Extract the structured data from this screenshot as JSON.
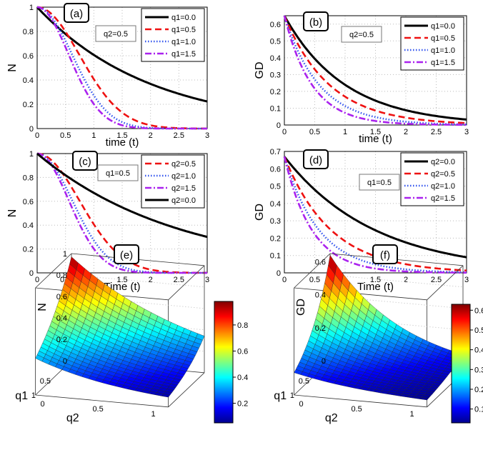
{
  "colors": {
    "black": "#000000",
    "red": "#ee1111",
    "blue": "#3355ee",
    "purple": "#aa22ee",
    "grid": "#bbbbbb"
  },
  "chart_data": [
    {
      "panel": "(a)",
      "type": "line",
      "ylabel": "N",
      "xlabel": "time (t)",
      "xlim": [
        0,
        3
      ],
      "ylim": [
        0,
        1
      ],
      "xticks": [
        "0",
        "0.5",
        "1",
        "1.5",
        "2",
        "2.5",
        "3"
      ],
      "yticks": [
        "0",
        "0.2",
        "0.4",
        "0.6",
        "0.8",
        "1"
      ],
      "annotation": "q2=0.5",
      "legend_position": "top-right",
      "series": [
        {
          "name": "q1=0.0",
          "style": "solid",
          "color": "black",
          "y0": 1.0,
          "rate": 0.5,
          "power": 1
        },
        {
          "name": "q1=0.5",
          "style": "dashed",
          "color": "red",
          "y0": 1.0,
          "rate": 0.9,
          "power": 2
        },
        {
          "name": "q1=1.0",
          "style": "dotted",
          "color": "blue",
          "y0": 1.0,
          "rate": 1.3,
          "power": 2
        },
        {
          "name": "q1=1.5",
          "style": "dashdot",
          "color": "purple",
          "y0": 1.0,
          "rate": 1.6,
          "power": 2
        }
      ]
    },
    {
      "panel": "(b)",
      "type": "line",
      "ylabel": "GD",
      "xlabel": "time (t)",
      "xlim": [
        0,
        3
      ],
      "ylim": [
        0,
        0.65
      ],
      "xticks": [
        "0",
        "0.5",
        "1",
        "1.5",
        "2",
        "2.5",
        "3"
      ],
      "yticks": [
        "0",
        "0.1",
        "0.2",
        "0.3",
        "0.4",
        "0.5",
        "0.6"
      ],
      "annotation": "q2=0.5",
      "legend_position": "top-right",
      "series": [
        {
          "name": "q1=0.0",
          "style": "solid",
          "color": "black",
          "y0": 0.65,
          "rate": 1.0,
          "power": 1
        },
        {
          "name": "q1=0.5",
          "style": "dashed",
          "color": "red",
          "y0": 0.65,
          "rate": 1.35,
          "power": 1
        },
        {
          "name": "q1=1.0",
          "style": "dotted",
          "color": "blue",
          "y0": 0.65,
          "rate": 1.75,
          "power": 1
        },
        {
          "name": "q1=1.5",
          "style": "dashdot",
          "color": "purple",
          "y0": 0.65,
          "rate": 2.2,
          "power": 1
        }
      ]
    },
    {
      "panel": "(c)",
      "type": "line",
      "ylabel": "N",
      "xlabel": "Time (t)",
      "xlim": [
        0,
        3
      ],
      "ylim": [
        0,
        1
      ],
      "xticks": [
        "0",
        "0.5",
        "1",
        "1.5",
        "2",
        "2.5",
        "3"
      ],
      "yticks": [
        "0",
        "0.2",
        "0.4",
        "0.6",
        "0.8",
        "1"
      ],
      "annotation": "q1=0.5",
      "legend_position": "top-right",
      "series": [
        {
          "name": "q2=0.5",
          "style": "dashed",
          "color": "red",
          "y0": 1.0,
          "rate": 0.9,
          "power": 2
        },
        {
          "name": "q2=1.0",
          "style": "dotted",
          "color": "blue",
          "y0": 1.0,
          "rate": 1.3,
          "power": 2
        },
        {
          "name": "q2=1.5",
          "style": "dashdot",
          "color": "purple",
          "y0": 1.0,
          "rate": 1.6,
          "power": 2
        },
        {
          "name": "q2=0.0",
          "style": "solid",
          "color": "black",
          "y0": 1.0,
          "rate": 0.4,
          "power": 1
        }
      ]
    },
    {
      "panel": "(d)",
      "type": "line",
      "ylabel": "GD",
      "xlabel": "Time (t)",
      "xlim": [
        0,
        3
      ],
      "ylim": [
        0,
        0.7
      ],
      "xticks": [
        "0",
        "0.5",
        "1",
        "1.5",
        "2",
        "2.5",
        "3"
      ],
      "yticks": [
        "0",
        "0.1",
        "0.2",
        "0.3",
        "0.4",
        "0.5",
        "0.6",
        "0.7"
      ],
      "annotation": "q1=0.5",
      "legend_position": "top-right",
      "series": [
        {
          "name": "q2=0.0",
          "style": "solid",
          "color": "black",
          "y0": 0.67,
          "rate": 0.67,
          "power": 1
        },
        {
          "name": "q2=0.5",
          "style": "dashed",
          "color": "red",
          "y0": 0.67,
          "rate": 1.3,
          "power": 1
        },
        {
          "name": "q2=1.0",
          "style": "dotted",
          "color": "blue",
          "y0": 0.67,
          "rate": 1.75,
          "power": 1
        },
        {
          "name": "q2=1.5",
          "style": "dashdot",
          "color": "purple",
          "y0": 0.67,
          "rate": 2.2,
          "power": 1
        }
      ]
    },
    {
      "panel": "(e)",
      "type": "surface",
      "zlabel": "N",
      "xlabel": "q2",
      "ylabel": "q1",
      "zticks": [
        "0",
        "0.2",
        "0.4",
        "0.6",
        "0.8",
        "1"
      ],
      "xticks": [
        "0",
        "0.5",
        "1"
      ],
      "yticks": [
        "0.5",
        "1"
      ],
      "colorbar_ticks": [
        "0.2",
        "0.4",
        "0.6",
        "0.8"
      ],
      "zrange": [
        0.05,
        0.98
      ]
    },
    {
      "panel": "(f)",
      "type": "surface",
      "zlabel": "GD",
      "xlabel": "q2",
      "ylabel": "q1",
      "zticks": [
        "0",
        "0.2",
        "0.4",
        "0.6"
      ],
      "xticks": [
        "0",
        "0.5",
        "1"
      ],
      "yticks": [
        "0.5",
        "1"
      ],
      "colorbar_ticks": [
        "0.1",
        "0.2",
        "0.3",
        "0.4",
        "0.5",
        "0.6"
      ],
      "zrange": [
        0.03,
        0.63
      ]
    }
  ]
}
